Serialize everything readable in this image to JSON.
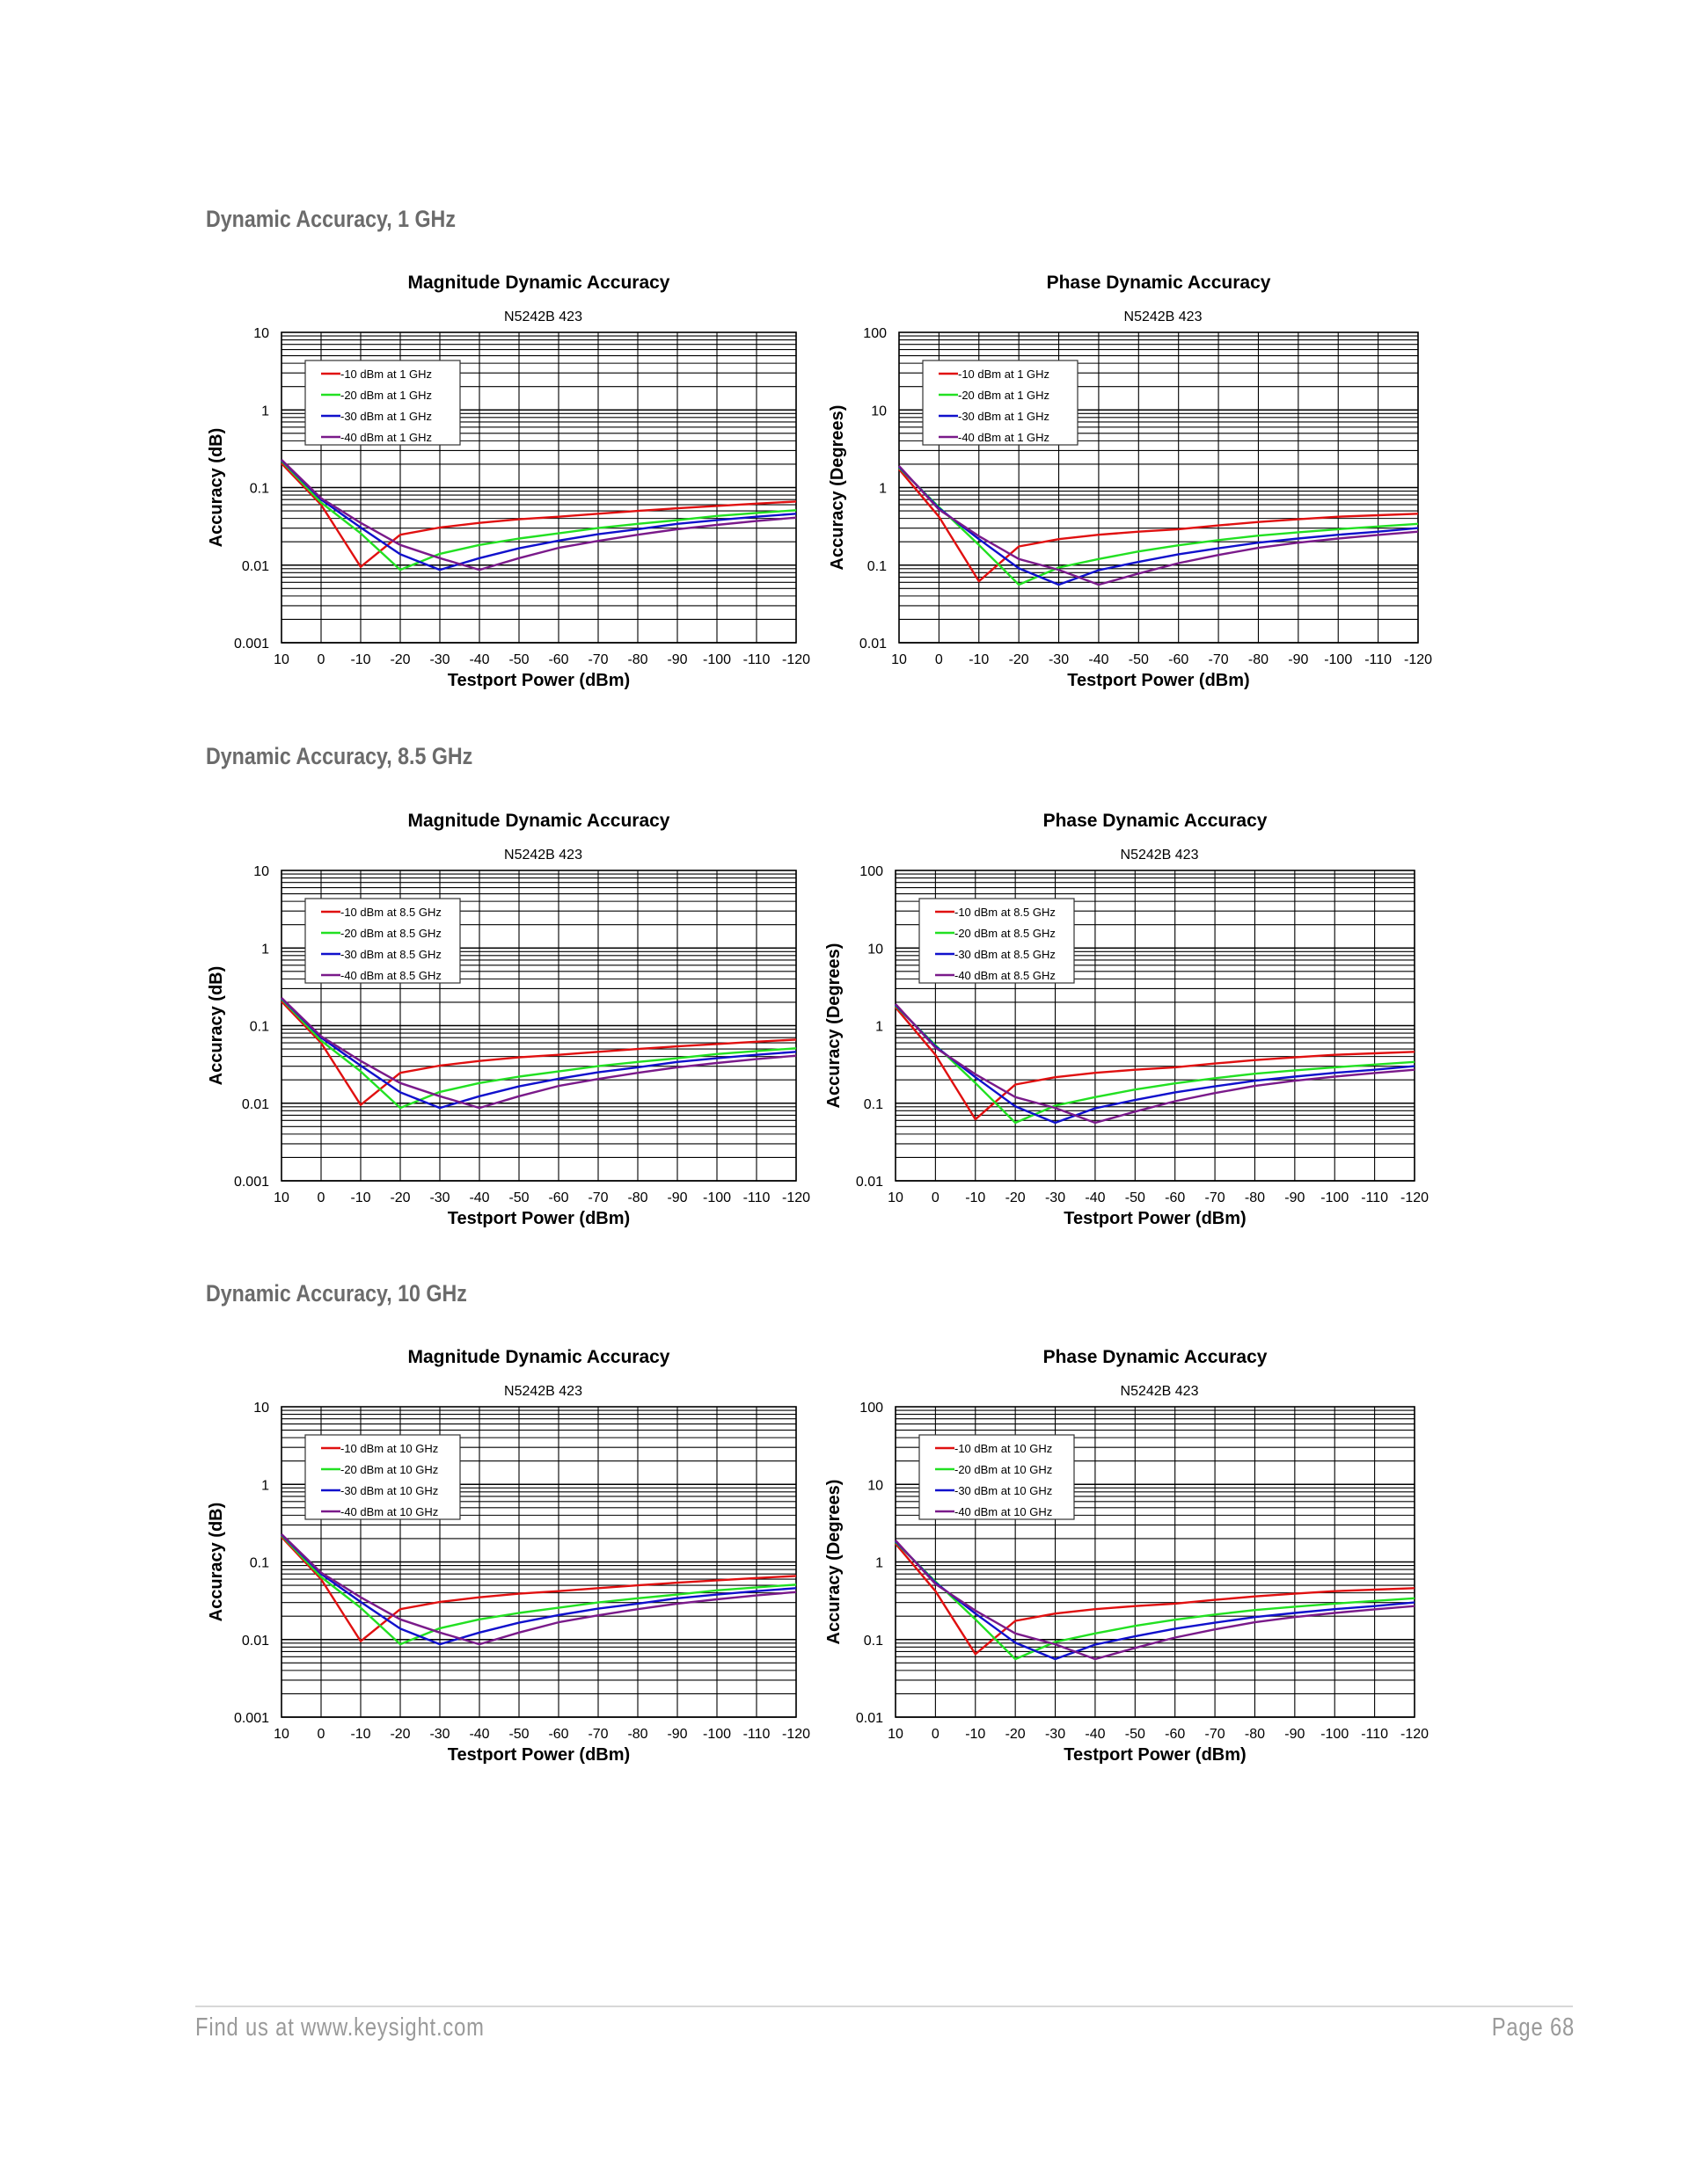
{
  "sections": [
    {
      "title": "Dynamic Accuracy, 1 GHz"
    },
    {
      "title": "Dynamic Accuracy, 8.5 GHz"
    },
    {
      "title": "Dynamic Accuracy, 10 GHz"
    }
  ],
  "footer": {
    "left": "Find us at www.keysight.com",
    "right": "Page 68"
  },
  "colors": {
    "series": [
      "#e01010",
      "#22e022",
      "#1010cc",
      "#7a1a8a"
    ],
    "section_title": "#6b6b6b",
    "footer_text": "#9a9a9a"
  },
  "chart_data": [
    {
      "id": "mag-1ghz",
      "type": "line",
      "section": 0,
      "title": "Magnitude Dynamic Accuracy",
      "subtitle": "N5242B 423",
      "xlabel": "Testport Power (dBm)",
      "ylabel": "Accuracy (dB)",
      "xlim": [
        10,
        -120
      ],
      "ylim": [
        0.001,
        10
      ],
      "yscale": "log",
      "grid": true,
      "legend": "top-left",
      "xticks": [
        "10",
        "0",
        "-10",
        "-20",
        "-30",
        "-40",
        "-50",
        "-60",
        "-70",
        "-80",
        "-90",
        "-100",
        "-110",
        "-120"
      ],
      "yticks": [
        "10",
        "1",
        "0.1",
        "0.01",
        "0.001"
      ],
      "x": [
        10,
        0,
        -10,
        -20,
        -30,
        -40,
        -50,
        -60,
        -70,
        -80,
        -90,
        -100,
        -110,
        -120
      ],
      "series": [
        {
          "name": "-10 dBm at 1 GHz",
          "values": [
            0.205,
            0.06,
            0.0095,
            0.0246,
            0.0305,
            0.035,
            0.039,
            0.042,
            0.046,
            0.05,
            0.054,
            0.058,
            0.062,
            0.066
          ]
        },
        {
          "name": "-20 dBm at 1 GHz",
          "values": [
            0.22,
            0.064,
            0.0257,
            0.0087,
            0.014,
            0.0182,
            0.022,
            0.0257,
            0.03,
            0.034,
            0.038,
            0.043,
            0.047,
            0.051
          ]
        },
        {
          "name": "-30 dBm at 1 GHz",
          "values": [
            0.225,
            0.07,
            0.0305,
            0.0138,
            0.0087,
            0.0123,
            0.0165,
            0.0207,
            0.025,
            0.029,
            0.034,
            0.038,
            0.042,
            0.046
          ]
        },
        {
          "name": "-40 dBm at 1 GHz",
          "values": [
            0.228,
            0.073,
            0.035,
            0.0182,
            0.0123,
            0.0087,
            0.0123,
            0.0167,
            0.0205,
            0.0246,
            0.029,
            0.033,
            0.037,
            0.041
          ]
        }
      ]
    },
    {
      "id": "phase-1ghz",
      "type": "line",
      "section": 0,
      "title": "Phase Dynamic Accuracy",
      "subtitle": "N5242B 423",
      "xlabel": "Testport Power (dBm)",
      "ylabel": "Accuracy (Degrees)",
      "xlim": [
        10,
        -120
      ],
      "ylim": [
        0.01,
        100
      ],
      "yscale": "log",
      "grid": true,
      "legend": "top-left",
      "xticks": [
        "10",
        "0",
        "-10",
        "-20",
        "-30",
        "-40",
        "-50",
        "-60",
        "-70",
        "-80",
        "-90",
        "-100",
        "-110",
        "-120"
      ],
      "yticks": [
        "100",
        "10",
        "1",
        "0.1",
        "0.01"
      ],
      "x": [
        10,
        0,
        -10,
        -20,
        -30,
        -40,
        -50,
        -60,
        -70,
        -80,
        -90,
        -100,
        -110,
        -120
      ],
      "series": [
        {
          "name": "-10 dBm at 1 GHz",
          "values": [
            1.72,
            0.42,
            0.062,
            0.174,
            0.216,
            0.246,
            0.27,
            0.29,
            0.325,
            0.36,
            0.39,
            0.42,
            0.44,
            0.46
          ]
        },
        {
          "name": "-20 dBm at 1 GHz",
          "values": [
            1.8,
            0.56,
            0.182,
            0.056,
            0.093,
            0.12,
            0.15,
            0.18,
            0.21,
            0.24,
            0.265,
            0.29,
            0.315,
            0.34
          ]
        },
        {
          "name": "-30 dBm at 1 GHz",
          "values": [
            1.85,
            0.54,
            0.216,
            0.091,
            0.056,
            0.086,
            0.11,
            0.138,
            0.165,
            0.195,
            0.22,
            0.246,
            0.27,
            0.3
          ]
        },
        {
          "name": "-40 dBm at 1 GHz",
          "values": [
            1.9,
            0.52,
            0.236,
            0.12,
            0.087,
            0.056,
            0.078,
            0.106,
            0.135,
            0.167,
            0.195,
            0.22,
            0.245,
            0.27
          ]
        }
      ]
    },
    {
      "id": "mag-8_5ghz",
      "type": "line",
      "section": 1,
      "title": "Magnitude Dynamic Accuracy",
      "subtitle": "N5242B 423",
      "xlabel": "Testport Power (dBm)",
      "ylabel": "Accuracy (dB)",
      "xlim": [
        10,
        -120
      ],
      "ylim": [
        0.001,
        10
      ],
      "yscale": "log",
      "grid": true,
      "legend": "top-left",
      "xticks": [
        "10",
        "0",
        "-10",
        "-20",
        "-30",
        "-40",
        "-50",
        "-60",
        "-70",
        "-80",
        "-90",
        "-100",
        "-110",
        "-120"
      ],
      "yticks": [
        "10",
        "1",
        "0.1",
        "0.01",
        "0.001"
      ],
      "x": [
        10,
        0,
        -10,
        -20,
        -30,
        -40,
        -50,
        -60,
        -70,
        -80,
        -90,
        -100,
        -110,
        -120
      ],
      "series": [
        {
          "name": "-10 dBm at 8.5 GHz",
          "values": [
            0.205,
            0.06,
            0.0095,
            0.0246,
            0.0305,
            0.035,
            0.039,
            0.042,
            0.046,
            0.05,
            0.054,
            0.058,
            0.062,
            0.066
          ]
        },
        {
          "name": "-20 dBm at 8.5 GHz",
          "values": [
            0.22,
            0.064,
            0.0257,
            0.0087,
            0.014,
            0.0182,
            0.022,
            0.0257,
            0.03,
            0.034,
            0.038,
            0.043,
            0.047,
            0.051
          ]
        },
        {
          "name": "-30 dBm at 8.5 GHz",
          "values": [
            0.225,
            0.07,
            0.0305,
            0.0138,
            0.0087,
            0.0123,
            0.0165,
            0.0207,
            0.025,
            0.029,
            0.034,
            0.038,
            0.042,
            0.046
          ]
        },
        {
          "name": "-40 dBm at 8.5 GHz",
          "values": [
            0.228,
            0.073,
            0.035,
            0.0182,
            0.0123,
            0.0087,
            0.0123,
            0.0167,
            0.0205,
            0.0246,
            0.029,
            0.033,
            0.037,
            0.041
          ]
        }
      ]
    },
    {
      "id": "phase-8_5ghz",
      "type": "line",
      "section": 1,
      "title": "Phase Dynamic Accuracy",
      "subtitle": "N5242B 423",
      "xlabel": "Testport Power (dBm)",
      "ylabel": "Accuracy (Degrees)",
      "xlim": [
        10,
        -120
      ],
      "ylim": [
        0.01,
        100
      ],
      "yscale": "log",
      "grid": true,
      "legend": "top-left",
      "xticks": [
        "10",
        "0",
        "-10",
        "-20",
        "-30",
        "-40",
        "-50",
        "-60",
        "-70",
        "-80",
        "-90",
        "-100",
        "-110",
        "-120"
      ],
      "yticks": [
        "100",
        "10",
        "1",
        "0.1",
        "0.01"
      ],
      "x": [
        10,
        0,
        -10,
        -20,
        -30,
        -40,
        -50,
        -60,
        -70,
        -80,
        -90,
        -100,
        -110,
        -120
      ],
      "series": [
        {
          "name": "-10 dBm at 8.5 GHz",
          "values": [
            1.72,
            0.42,
            0.062,
            0.174,
            0.216,
            0.246,
            0.27,
            0.29,
            0.325,
            0.36,
            0.39,
            0.42,
            0.44,
            0.46
          ]
        },
        {
          "name": "-20 dBm at 8.5 GHz",
          "values": [
            1.8,
            0.56,
            0.182,
            0.056,
            0.093,
            0.12,
            0.15,
            0.18,
            0.21,
            0.24,
            0.265,
            0.29,
            0.315,
            0.34
          ]
        },
        {
          "name": "-30 dBm at 8.5 GHz",
          "values": [
            1.85,
            0.54,
            0.216,
            0.091,
            0.056,
            0.086,
            0.11,
            0.138,
            0.165,
            0.195,
            0.22,
            0.246,
            0.27,
            0.3
          ]
        },
        {
          "name": "-40 dBm at 8.5 GHz",
          "values": [
            1.9,
            0.52,
            0.236,
            0.12,
            0.087,
            0.056,
            0.078,
            0.106,
            0.135,
            0.167,
            0.195,
            0.22,
            0.245,
            0.27
          ]
        }
      ]
    },
    {
      "id": "mag-10ghz",
      "type": "line",
      "section": 2,
      "title": "Magnitude Dynamic Accuracy",
      "subtitle": "N5242B 423",
      "xlabel": "Testport Power (dBm)",
      "ylabel": "Accuracy (dB)",
      "xlim": [
        10,
        -120
      ],
      "ylim": [
        0.001,
        10
      ],
      "yscale": "log",
      "grid": true,
      "legend": "top-left",
      "xticks": [
        "10",
        "0",
        "-10",
        "-20",
        "-30",
        "-40",
        "-50",
        "-60",
        "-70",
        "-80",
        "-90",
        "-100",
        "-110",
        "-120"
      ],
      "yticks": [
        "10",
        "1",
        "0.1",
        "0.01",
        "0.001"
      ],
      "x": [
        10,
        0,
        -10,
        -20,
        -30,
        -40,
        -50,
        -60,
        -70,
        -80,
        -90,
        -100,
        -110,
        -120
      ],
      "series": [
        {
          "name": "-10 dBm at 10 GHz",
          "values": [
            0.21,
            0.06,
            0.0095,
            0.0246,
            0.0305,
            0.035,
            0.039,
            0.042,
            0.046,
            0.05,
            0.054,
            0.058,
            0.062,
            0.066
          ]
        },
        {
          "name": "-20 dBm at 10 GHz",
          "values": [
            0.22,
            0.064,
            0.0257,
            0.0087,
            0.014,
            0.0182,
            0.022,
            0.0257,
            0.03,
            0.034,
            0.038,
            0.043,
            0.047,
            0.051
          ]
        },
        {
          "name": "-30 dBm at 10 GHz",
          "values": [
            0.225,
            0.07,
            0.0305,
            0.0138,
            0.0087,
            0.0123,
            0.0165,
            0.0207,
            0.025,
            0.029,
            0.034,
            0.038,
            0.042,
            0.046
          ]
        },
        {
          "name": "-40 dBm at 10 GHz",
          "values": [
            0.228,
            0.073,
            0.035,
            0.0182,
            0.0123,
            0.0087,
            0.0123,
            0.0167,
            0.0205,
            0.0246,
            0.029,
            0.033,
            0.037,
            0.041
          ]
        }
      ]
    },
    {
      "id": "phase-10ghz",
      "type": "line",
      "section": 2,
      "title": "Phase Dynamic Accuracy",
      "subtitle": "N5242B 423",
      "xlabel": "Testport Power (dBm)",
      "ylabel": "Accuracy (Degrees)",
      "xlim": [
        10,
        -120
      ],
      "ylim": [
        0.01,
        100
      ],
      "yscale": "log",
      "grid": true,
      "legend": "top-left",
      "xticks": [
        "10",
        "0",
        "-10",
        "-20",
        "-30",
        "-40",
        "-50",
        "-60",
        "-70",
        "-80",
        "-90",
        "-100",
        "-110",
        "-120"
      ],
      "yticks": [
        "100",
        "10",
        "1",
        "0.1",
        "0.01"
      ],
      "x": [
        10,
        0,
        -10,
        -20,
        -30,
        -40,
        -50,
        -60,
        -70,
        -80,
        -90,
        -100,
        -110,
        -120
      ],
      "series": [
        {
          "name": "-10 dBm at 10 GHz",
          "values": [
            1.72,
            0.42,
            0.065,
            0.174,
            0.216,
            0.246,
            0.27,
            0.29,
            0.325,
            0.36,
            0.39,
            0.42,
            0.44,
            0.46
          ]
        },
        {
          "name": "-20 dBm at 10 GHz",
          "values": [
            1.8,
            0.56,
            0.182,
            0.056,
            0.093,
            0.12,
            0.15,
            0.18,
            0.21,
            0.24,
            0.265,
            0.29,
            0.315,
            0.34
          ]
        },
        {
          "name": "-30 dBm at 10 GHz",
          "values": [
            1.85,
            0.54,
            0.216,
            0.091,
            0.056,
            0.086,
            0.11,
            0.138,
            0.165,
            0.195,
            0.22,
            0.246,
            0.27,
            0.3
          ]
        },
        {
          "name": "-40 dBm at 10 GHz",
          "values": [
            1.9,
            0.52,
            0.236,
            0.12,
            0.087,
            0.056,
            0.078,
            0.106,
            0.135,
            0.167,
            0.195,
            0.22,
            0.245,
            0.27
          ]
        }
      ]
    }
  ]
}
